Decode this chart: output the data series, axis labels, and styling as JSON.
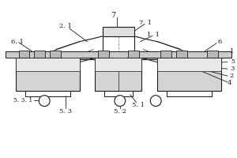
{
  "figsize": [
    3.0,
    2.0
  ],
  "dpi": 100,
  "lc": "#1a1a1a",
  "bg": "#ffffff",
  "gray_light": "#d4d4d4",
  "gray_mid": "#b8b8b8",
  "gray_dark": "#999999"
}
